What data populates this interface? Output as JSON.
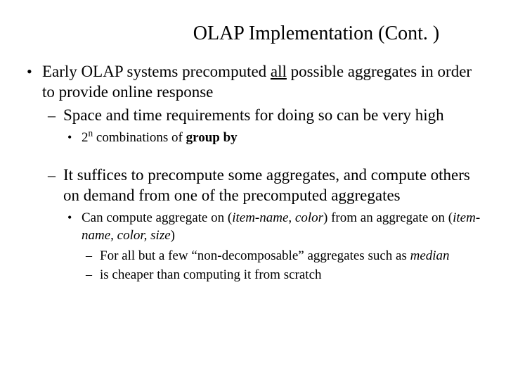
{
  "colors": {
    "bg": "#ffffff",
    "text": "#000000"
  },
  "typography": {
    "family": "Times New Roman",
    "title_fontsize": 28,
    "l1_fontsize": 23,
    "l2_fontsize": 23,
    "l3_fontsize": 19,
    "l4_fontsize": 19
  },
  "title": "OLAP Implementation (Cont. )",
  "b1_pre": "Early OLAP systems precomputed ",
  "b1_all": "all",
  "b1_post": " possible aggregates in order to provide online response",
  "b2": "Space and time requirements for doing so can be very high",
  "b3_pre": "2",
  "b3_sup": "n",
  "b3_mid": " combinations of ",
  "b3_bold": "group by",
  "b4": "It suffices to precompute some aggregates, and compute others on demand from one of the precomputed aggregates",
  "b5_a": "Can compute aggregate on (",
  "b5_b": "item-name, color",
  "b5_c": ") from an aggregate on (",
  "b5_d": "item-name, color, size",
  "b5_e": ")",
  "b6_a": "For all but a few “non-decomposable” aggregates such as ",
  "b6_b": "median",
  "b7": "is cheaper than computing it from scratch"
}
